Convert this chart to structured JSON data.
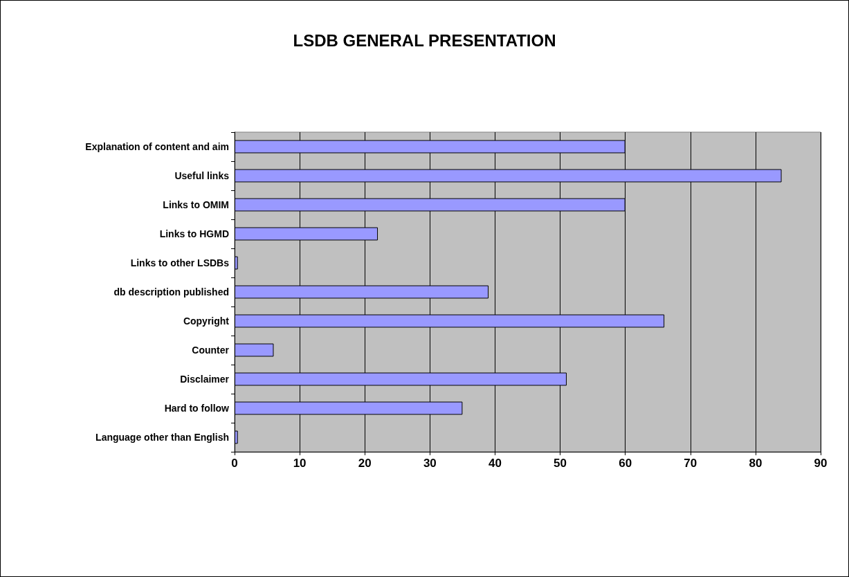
{
  "chart_data": {
    "type": "bar",
    "orientation": "horizontal",
    "title": "LSDB GENERAL PRESENTATION",
    "categories": [
      "Explanation of content and aim",
      "Useful links",
      "Links to OMIM",
      "Links to HGMD",
      "Links to other LSDBs",
      "db description published",
      "Copyright",
      "Counter",
      "Disclaimer",
      "Hard to follow",
      "Language other than English"
    ],
    "values": [
      60,
      84,
      60,
      22,
      0.5,
      39,
      66,
      6,
      51,
      35,
      0.5
    ],
    "color": "#9999ff",
    "xlim": [
      0,
      90
    ],
    "xticks": [
      0,
      10,
      20,
      30,
      40,
      50,
      60,
      70,
      80,
      90
    ],
    "grid": "x"
  }
}
